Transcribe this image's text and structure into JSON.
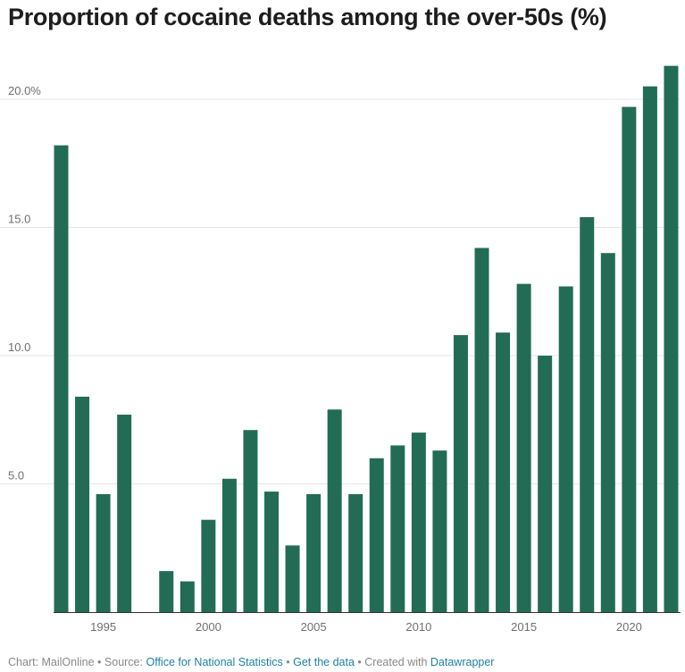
{
  "chart_data": {
    "type": "bar",
    "title": "Proportion of cocaine deaths among the over-50s (%)",
    "xlabel": "",
    "ylabel": "",
    "x": [
      1993,
      1994,
      1995,
      1996,
      1997,
      1998,
      1999,
      2000,
      2001,
      2002,
      2003,
      2004,
      2005,
      2006,
      2007,
      2008,
      2009,
      2010,
      2011,
      2012,
      2013,
      2014,
      2015,
      2016,
      2017,
      2018,
      2019,
      2020,
      2021,
      2022
    ],
    "values": [
      18.2,
      8.4,
      4.6,
      7.7,
      0,
      1.6,
      1.2,
      3.6,
      5.2,
      7.1,
      4.7,
      2.6,
      4.6,
      7.9,
      4.6,
      6.0,
      6.5,
      7.0,
      6.3,
      10.8,
      14.2,
      10.9,
      12.8,
      10.0,
      12.7,
      15.4,
      14.0,
      19.7,
      20.5,
      21.3
    ],
    "ylim": [
      0,
      21.5
    ],
    "yticks": [
      5.0,
      10.0,
      15.0,
      20.0
    ],
    "ytick_labels": [
      "5.0",
      "10.0",
      "15.0",
      "20.0%"
    ],
    "xticks": [
      1995,
      2000,
      2005,
      2010,
      2015,
      2020
    ],
    "xtick_labels": [
      "1995",
      "2000",
      "2005",
      "2010",
      "2015",
      "2020"
    ],
    "bar_color": "#226c56",
    "grid": true
  },
  "footer": {
    "chart_prefix": "Chart: MailOnline",
    "sep1": " • ",
    "source_prefix": "Source: ",
    "source_link": "Office for National Statistics",
    "sep2": " • ",
    "data_link": "Get the data",
    "sep3": " • ",
    "created_prefix": "Created with ",
    "created_link": "Datawrapper"
  }
}
